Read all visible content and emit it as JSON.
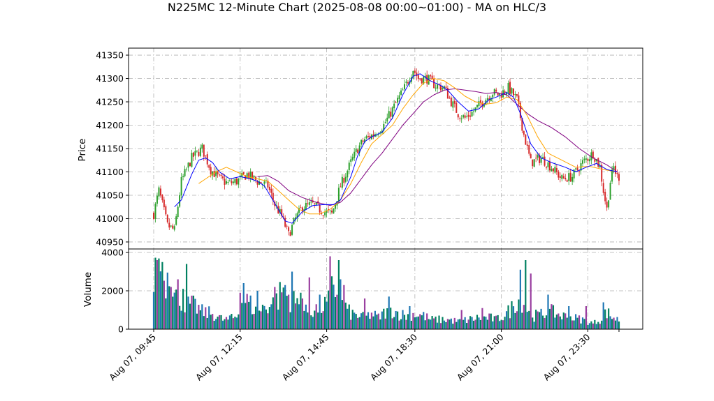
{
  "chart_data": {
    "type": "candlestick",
    "title": "N225MC 12-Minute Chart (2025-08-08 00:00~01:00) - MA on HLC/3",
    "price_panel": {
      "ylabel": "Price",
      "ylim": [
        40935,
        41365
      ],
      "yticks": [
        40950,
        41000,
        41050,
        41100,
        41150,
        41200,
        41250,
        41300,
        41350
      ],
      "grid": true
    },
    "volume_panel": {
      "ylabel": "Volume",
      "ylim": [
        0,
        4000
      ],
      "yticks": [
        0,
        2000,
        4000
      ],
      "grid": true
    },
    "xticks": [
      "Aug 07, 09:45",
      "Aug 07, 12:15",
      "Aug 07, 14:45",
      "Aug 07, 18:30",
      "Aug 07, 21:00",
      "Aug 07, 23:30"
    ],
    "colors": {
      "up": "#2ca02c",
      "down": "#d62728",
      "ma_fast": "#0000ff",
      "ma_mid": "#ffa500",
      "ma_slow": "#800080",
      "vol_a": "#1f77b4",
      "vol_b": "#008060",
      "vol_c": "#9a3fa0"
    },
    "close_path": [
      [
        0,
        41010
      ],
      [
        3,
        41060
      ],
      [
        8,
        40985
      ],
      [
        12,
        40975
      ],
      [
        16,
        41080
      ],
      [
        22,
        41130
      ],
      [
        28,
        41150
      ],
      [
        33,
        41105
      ],
      [
        38,
        41085
      ],
      [
        43,
        41075
      ],
      [
        48,
        41080
      ],
      [
        54,
        41095
      ],
      [
        60,
        41080
      ],
      [
        66,
        41070
      ],
      [
        70,
        41030
      ],
      [
        74,
        41005
      ],
      [
        78,
        40965
      ],
      [
        82,
        41000
      ],
      [
        86,
        41025
      ],
      [
        92,
        41030
      ],
      [
        98,
        41015
      ],
      [
        103,
        41010
      ],
      [
        108,
        41070
      ],
      [
        114,
        41120
      ],
      [
        118,
        41150
      ],
      [
        122,
        41170
      ],
      [
        127,
        41180
      ],
      [
        133,
        41200
      ],
      [
        139,
        41240
      ],
      [
        145,
        41280
      ],
      [
        150,
        41320
      ],
      [
        153,
        41300
      ],
      [
        158,
        41300
      ],
      [
        163,
        41285
      ],
      [
        168,
        41280
      ],
      [
        172,
        41250
      ],
      [
        176,
        41225
      ],
      [
        180,
        41215
      ],
      [
        185,
        41230
      ],
      [
        190,
        41250
      ],
      [
        196,
        41270
      ],
      [
        200,
        41265
      ],
      [
        205,
        41280
      ],
      [
        210,
        41255
      ],
      [
        214,
        41180
      ],
      [
        218,
        41120
      ],
      [
        224,
        41130
      ],
      [
        230,
        41110
      ],
      [
        236,
        41085
      ],
      [
        242,
        41090
      ],
      [
        248,
        41120
      ],
      [
        254,
        41140
      ],
      [
        258,
        41110
      ],
      [
        260,
        41060
      ],
      [
        262,
        41020
      ],
      [
        264,
        41080
      ],
      [
        266,
        41110
      ],
      [
        268,
        41090
      ]
    ],
    "ma_fast": [
      [
        12,
        41025
      ],
      [
        16,
        41040
      ],
      [
        22,
        41095
      ],
      [
        26,
        41125
      ],
      [
        30,
        41130
      ],
      [
        34,
        41120
      ],
      [
        38,
        41100
      ],
      [
        44,
        41085
      ],
      [
        50,
        41090
      ],
      [
        56,
        41085
      ],
      [
        60,
        41080
      ],
      [
        64,
        41070
      ],
      [
        68,
        41045
      ],
      [
        72,
        41020
      ],
      [
        76,
        40995
      ],
      [
        80,
        40990
      ],
      [
        86,
        41015
      ],
      [
        92,
        41028
      ],
      [
        98,
        41030
      ],
      [
        104,
        41030
      ],
      [
        108,
        41040
      ],
      [
        114,
        41090
      ],
      [
        118,
        41135
      ],
      [
        122,
        41165
      ],
      [
        126,
        41175
      ],
      [
        132,
        41185
      ],
      [
        138,
        41215
      ],
      [
        144,
        41265
      ],
      [
        150,
        41305
      ],
      [
        154,
        41310
      ],
      [
        160,
        41295
      ],
      [
        166,
        41285
      ],
      [
        170,
        41275
      ],
      [
        176,
        41250
      ],
      [
        182,
        41230
      ],
      [
        188,
        41235
      ],
      [
        194,
        41255
      ],
      [
        198,
        41260
      ],
      [
        204,
        41270
      ],
      [
        208,
        41260
      ],
      [
        212,
        41225
      ],
      [
        218,
        41160
      ],
      [
        224,
        41130
      ],
      [
        230,
        41120
      ],
      [
        238,
        41110
      ],
      [
        244,
        41100
      ],
      [
        250,
        41110
      ],
      [
        256,
        41118
      ],
      [
        262,
        41105
      ],
      [
        268,
        41100
      ]
    ],
    "ma_mid": [
      [
        26,
        41075
      ],
      [
        30,
        41085
      ],
      [
        36,
        41100
      ],
      [
        42,
        41110
      ],
      [
        48,
        41100
      ],
      [
        54,
        41090
      ],
      [
        60,
        41085
      ],
      [
        66,
        41080
      ],
      [
        72,
        41060
      ],
      [
        78,
        41040
      ],
      [
        84,
        41020
      ],
      [
        90,
        41010
      ],
      [
        96,
        41010
      ],
      [
        102,
        41020
      ],
      [
        108,
        41040
      ],
      [
        114,
        41075
      ],
      [
        120,
        41120
      ],
      [
        126,
        41160
      ],
      [
        132,
        41180
      ],
      [
        138,
        41200
      ],
      [
        144,
        41235
      ],
      [
        150,
        41265
      ],
      [
        156,
        41290
      ],
      [
        162,
        41300
      ],
      [
        168,
        41295
      ],
      [
        174,
        41280
      ],
      [
        180,
        41262
      ],
      [
        186,
        41250
      ],
      [
        192,
        41245
      ],
      [
        198,
        41248
      ],
      [
        204,
        41260
      ],
      [
        210,
        41255
      ],
      [
        216,
        41220
      ],
      [
        222,
        41175
      ],
      [
        228,
        41140
      ],
      [
        236,
        41125
      ],
      [
        244,
        41110
      ],
      [
        252,
        41112
      ],
      [
        260,
        41105
      ],
      [
        268,
        41100
      ]
    ],
    "ma_slow": [
      [
        60,
        41090
      ],
      [
        66,
        41092
      ],
      [
        72,
        41080
      ],
      [
        78,
        41060
      ],
      [
        86,
        41045
      ],
      [
        94,
        41035
      ],
      [
        102,
        41028
      ],
      [
        108,
        41035
      ],
      [
        114,
        41055
      ],
      [
        120,
        41085
      ],
      [
        126,
        41115
      ],
      [
        132,
        41140
      ],
      [
        138,
        41170
      ],
      [
        144,
        41200
      ],
      [
        150,
        41225
      ],
      [
        156,
        41250
      ],
      [
        162,
        41265
      ],
      [
        168,
        41275
      ],
      [
        174,
        41278
      ],
      [
        180,
        41275
      ],
      [
        186,
        41272
      ],
      [
        192,
        41268
      ],
      [
        198,
        41270
      ],
      [
        204,
        41265
      ],
      [
        210,
        41245
      ],
      [
        216,
        41225
      ],
      [
        222,
        41210
      ],
      [
        230,
        41195
      ],
      [
        238,
        41175
      ],
      [
        246,
        41150
      ],
      [
        254,
        41130
      ],
      [
        262,
        41115
      ],
      [
        268,
        41100
      ]
    ],
    "volume_path": [
      [
        0,
        2800
      ],
      [
        3,
        3600
      ],
      [
        6,
        2200
      ],
      [
        9,
        3500
      ],
      [
        12,
        1800
      ],
      [
        16,
        1600
      ],
      [
        20,
        1300
      ],
      [
        24,
        1200
      ],
      [
        28,
        900
      ],
      [
        34,
        800
      ],
      [
        40,
        500
      ],
      [
        44,
        500
      ],
      [
        48,
        700
      ],
      [
        52,
        1600
      ],
      [
        56,
        1300
      ],
      [
        60,
        800
      ],
      [
        64,
        1200
      ],
      [
        68,
        1300
      ],
      [
        72,
        1500
      ],
      [
        74,
        2100
      ],
      [
        76,
        1900
      ],
      [
        80,
        1500
      ],
      [
        84,
        1300
      ],
      [
        88,
        900
      ],
      [
        92,
        1000
      ],
      [
        96,
        1100
      ],
      [
        100,
        1300
      ],
      [
        102,
        1600
      ],
      [
        104,
        2500
      ],
      [
        106,
        1800
      ],
      [
        110,
        1200
      ],
      [
        114,
        800
      ],
      [
        118,
        700
      ],
      [
        122,
        600
      ],
      [
        126,
        800
      ],
      [
        130,
        600
      ],
      [
        134,
        900
      ],
      [
        138,
        1000
      ],
      [
        142,
        800
      ],
      [
        146,
        700
      ],
      [
        150,
        800
      ],
      [
        156,
        700
      ],
      [
        160,
        500
      ],
      [
        166,
        500
      ],
      [
        170,
        500
      ],
      [
        176,
        400
      ],
      [
        182,
        500
      ],
      [
        188,
        600
      ],
      [
        194,
        600
      ],
      [
        198,
        500
      ],
      [
        204,
        800
      ],
      [
        208,
        1200
      ],
      [
        210,
        1600
      ],
      [
        212,
        1700
      ],
      [
        216,
        1100
      ],
      [
        220,
        700
      ],
      [
        226,
        800
      ],
      [
        230,
        900
      ],
      [
        236,
        700
      ],
      [
        242,
        600
      ],
      [
        248,
        500
      ],
      [
        254,
        300
      ],
      [
        258,
        500
      ],
      [
        262,
        900
      ],
      [
        264,
        700
      ],
      [
        268,
        500
      ]
    ],
    "volume_spikes": [
      [
        2,
        3600
      ],
      [
        5,
        3500
      ],
      [
        10,
        2200
      ],
      [
        14,
        2600
      ],
      [
        17,
        2100
      ],
      [
        19,
        3400
      ],
      [
        45,
        800
      ],
      [
        50,
        1900
      ],
      [
        52,
        2400
      ],
      [
        60,
        2000
      ],
      [
        70,
        2200
      ],
      [
        76,
        2300
      ],
      [
        80,
        3000
      ],
      [
        85,
        1900
      ],
      [
        86,
        1600
      ],
      [
        90,
        2700
      ],
      [
        96,
        1800
      ],
      [
        102,
        3800
      ],
      [
        107,
        3600
      ],
      [
        108,
        2600
      ],
      [
        110,
        2300
      ],
      [
        122,
        1600
      ],
      [
        136,
        1700
      ],
      [
        148,
        1200
      ],
      [
        178,
        1000
      ],
      [
        190,
        1100
      ],
      [
        212,
        3100
      ],
      [
        215,
        3600
      ],
      [
        218,
        2900
      ],
      [
        228,
        1800
      ],
      [
        240,
        1200
      ],
      [
        250,
        1200
      ],
      [
        260,
        1400
      ],
      [
        266,
        600
      ]
    ]
  }
}
